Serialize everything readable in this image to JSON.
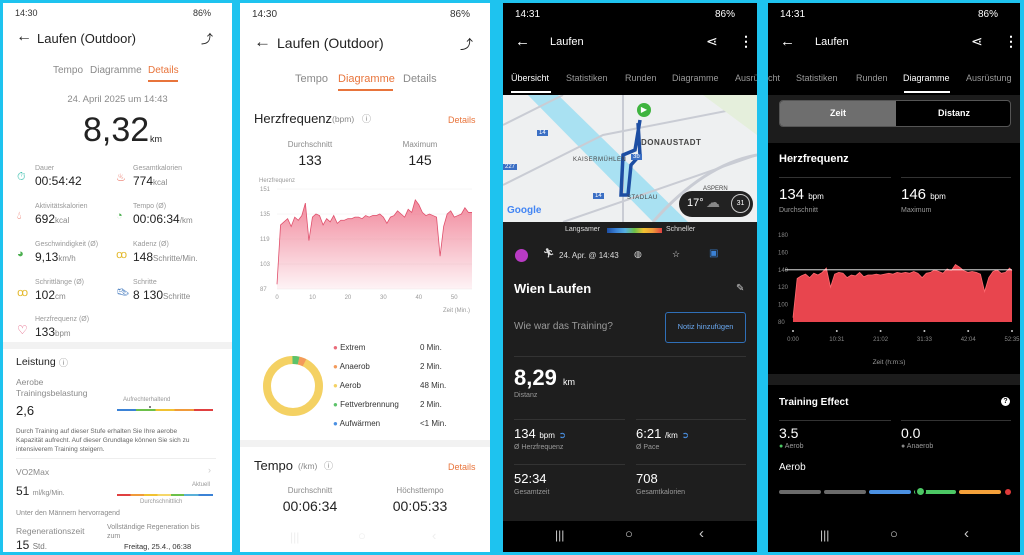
{
  "huawei_details": {
    "status": {
      "time": "14:30",
      "battery": "86%"
    },
    "title": "Laufen (Outdoor)",
    "tabs": [
      "Tempo",
      "Diagramme",
      "Details"
    ],
    "active_tab": "Details",
    "date": "24. April 2025 um 14:43",
    "distance": "8,32",
    "distance_unit": "km",
    "stats": [
      {
        "label": "Dauer",
        "value": "00:54:42",
        "unit": "",
        "icon": "stopwatch-icon"
      },
      {
        "label": "Gesamtkalorien",
        "value": "774",
        "unit": "kcal",
        "icon": "flame-icon"
      },
      {
        "label": "Aktivitätskalorien",
        "value": "692",
        "unit": "kcal",
        "icon": "drop-icon"
      },
      {
        "label": "Tempo (Ø)",
        "value": "00:06:34",
        "unit": "/km",
        "icon": "gauge-icon"
      },
      {
        "label": "Geschwindigkeit (Ø)",
        "value": "9,13",
        "unit": "km/h",
        "icon": "speedometer-icon"
      },
      {
        "label": "Kadenz (Ø)",
        "value": "148",
        "unit": "Schritte/Min.",
        "icon": "footprints-icon"
      },
      {
        "label": "Schrittlänge (Ø)",
        "value": "102",
        "unit": "cm",
        "icon": "footprints-icon"
      },
      {
        "label": "Schritte",
        "value": "8 130",
        "unit": "Schritte",
        "icon": "shoe-icon"
      },
      {
        "label": "Herzfrequenz (Ø)",
        "value": "133",
        "unit": "bpm",
        "icon": "heart-icon"
      }
    ],
    "leistung": {
      "title": "Leistung",
      "aerobe_label_1": "Aerobe",
      "aerobe_label_2": "Trainingsbelastung",
      "aerobe_value": "2,6",
      "aerobe_level": "Aufrechterhaltend",
      "description_1": "Durch Training auf dieser Stufe erhalten Sie Ihre aerobe",
      "description_2": "Kapazität aufrecht. Auf dieser Grundlage können Sie sich zu",
      "description_3": "intensiverem Training steigern.",
      "vo2_label": "VO2Max",
      "vo2_value": "51",
      "vo2_unit": "ml/kg/Min.",
      "vo2_current": "Aktuell",
      "vo2_average": "Durchschnittlich",
      "vo2_note": "Unter den Männern hervorragend",
      "regen_label": "Regenerationszeit",
      "regen_value": "15",
      "regen_unit": "Std.",
      "regen_full_1": "Vollständige Regeneration bis",
      "regen_full_2": "zum",
      "regen_date": "Freitag, 25.4., 06:38"
    }
  },
  "huawei_charts": {
    "status": {
      "time": "14:30",
      "battery": "86%"
    },
    "title": "Laufen (Outdoor)",
    "tabs": [
      "Tempo",
      "Diagramme",
      "Details"
    ],
    "active_tab": "Diagramme",
    "hr": {
      "title": "Herzfrequenz",
      "unit": "(bpm)",
      "details": "Details",
      "avg_label": "Durchschnitt",
      "avg": "133",
      "max_label": "Maximum",
      "max": "145"
    },
    "zones": [
      {
        "name": "Extrem",
        "value": "0 Min.",
        "color": "#e96b7a"
      },
      {
        "name": "Anaerob",
        "value": "2 Min.",
        "color": "#f39a5b"
      },
      {
        "name": "Aerob",
        "value": "48 Min.",
        "color": "#f4d163"
      },
      {
        "name": "Fettverbrennung",
        "value": "2 Min.",
        "color": "#5cc26a"
      },
      {
        "name": "Aufwärmen",
        "value": "<1 Min.",
        "color": "#4a90e2"
      }
    ],
    "tempo": {
      "title": "Tempo",
      "unit": "(/km)",
      "details": "Details",
      "avg_label": "Durchschnitt",
      "avg": "00:06:34",
      "best_label": "Höchsttempo",
      "best": "00:05:33"
    }
  },
  "garmin_overview": {
    "status": {
      "time": "14:31",
      "battery": "86%"
    },
    "title": "Laufen",
    "tabs": [
      "Übersicht",
      "Statistiken",
      "Runden",
      "Diagramme",
      "Ausrü"
    ],
    "active_tab": "Übersicht",
    "map": {
      "labels": [
        "DONAUSTADT",
        "KAISERMÜHLEN",
        "STADLAU",
        "ASPERN",
        "14",
        "14",
        "227",
        "3b"
      ],
      "logo": "Google",
      "weather_temp": "17°",
      "weather_badge": "31"
    },
    "speed_legend": {
      "slow": "Langsamer",
      "fast": "Schneller"
    },
    "activity_date": "24. Apr. @ 14:43",
    "name": "Wien Laufen",
    "prompt": "Wie war das Training?",
    "note_button": "Notiz hinzufügen",
    "distance": "8,29",
    "distance_unit": "km",
    "distance_label": "Distanz",
    "stats": [
      {
        "value": "134",
        "unit": "bpm",
        "label": "Ø Herzfrequenz"
      },
      {
        "value": "6:21",
        "unit": "/km",
        "label": "Ø Pace"
      },
      {
        "value": "52:34",
        "unit": "",
        "label": "Gesamtzeit"
      },
      {
        "value": "708",
        "unit": "",
        "label": "Gesamtkalorien"
      }
    ]
  },
  "garmin_charts": {
    "status": {
      "time": "14:31",
      "battery": "86%"
    },
    "title": "Laufen",
    "tabs": [
      "cht",
      "Statistiken",
      "Runden",
      "Diagramme",
      "Ausrüstung"
    ],
    "active_tab": "Diagramme",
    "toggle": [
      "Zeit",
      "Distanz"
    ],
    "toggle_active": "Zeit",
    "hr": {
      "title": "Herzfrequenz",
      "avg": "134",
      "avg_unit": "bpm",
      "avg_label": "Durchschnitt",
      "max": "146",
      "max_unit": "bpm",
      "max_label": "Maximum"
    },
    "training_effect": {
      "title": "Training Effect",
      "aerob": "3.5",
      "aerob_label": "Aerob",
      "anaerob": "0.0",
      "anaerob_label": "Anaerob",
      "scale_title": "Aerob",
      "aerob_value": 3.5
    }
  },
  "chart_data": [
    {
      "type": "area",
      "title": "Herzfrequenz",
      "ylabel": "Herzfrequenz",
      "xlabel": "Zeit (Min.)",
      "ylim": [
        87,
        151
      ],
      "yticks": [
        "151",
        "135",
        "119",
        "103",
        "87"
      ],
      "xlim": [
        0,
        55
      ],
      "xticks": [
        "0",
        "10",
        "20",
        "30",
        "40",
        "50"
      ],
      "x": [
        0,
        1,
        2,
        3,
        4,
        5,
        6,
        7,
        8,
        9,
        10,
        11,
        12,
        13,
        14,
        15,
        16,
        17,
        18,
        19,
        20,
        21,
        22,
        23,
        24,
        25,
        26,
        27,
        28,
        29,
        30,
        31,
        32,
        33,
        34,
        35,
        36,
        37,
        38,
        39,
        40,
        41,
        42,
        43,
        44,
        45,
        46,
        47,
        48,
        49,
        50,
        51,
        52,
        53,
        54,
        55
      ],
      "y": [
        90,
        128,
        130,
        132,
        127,
        133,
        131,
        134,
        142,
        118,
        133,
        135,
        134,
        128,
        132,
        130,
        134,
        129,
        131,
        131,
        132,
        132,
        133,
        133,
        132,
        134,
        133,
        134,
        134,
        135,
        133,
        129,
        133,
        134,
        137,
        135,
        133,
        138,
        136,
        144,
        141,
        136,
        134,
        135,
        134,
        133,
        108,
        127,
        135,
        137,
        133,
        134,
        135,
        139,
        136,
        136
      ]
    },
    {
      "type": "area",
      "title": "Herzfrequenz",
      "xlabel": "Zeit (h:m:s)",
      "ylim": [
        80,
        180
      ],
      "yticks": [
        "180",
        "160",
        "140",
        "120",
        "100",
        "80"
      ],
      "xlim": [
        0,
        52.58
      ],
      "xticks": [
        "0:00",
        "10:31",
        "21:02",
        "31:33",
        "42:04",
        "52:35"
      ],
      "x": [
        0,
        1,
        2,
        3,
        4,
        5,
        6,
        7,
        8,
        9,
        10,
        11,
        12,
        13,
        14,
        15,
        16,
        17,
        18,
        19,
        20,
        21,
        22,
        23,
        24,
        25,
        26,
        27,
        28,
        29,
        30,
        31,
        32,
        33,
        34,
        35,
        36,
        37,
        38,
        39,
        40,
        41,
        42,
        43,
        44,
        45,
        46,
        47,
        48,
        49,
        50,
        51,
        52,
        52.58
      ],
      "y": [
        85,
        130,
        133,
        135,
        131,
        136,
        134,
        137,
        142,
        120,
        135,
        137,
        136,
        131,
        134,
        133,
        137,
        132,
        134,
        134,
        135,
        134,
        135,
        136,
        135,
        137,
        136,
        137,
        136,
        138,
        136,
        131,
        136,
        137,
        140,
        138,
        136,
        141,
        139,
        146,
        143,
        139,
        137,
        138,
        137,
        135,
        115,
        131,
        138,
        140,
        136,
        137,
        142,
        139
      ]
    },
    {
      "type": "pie",
      "title": "",
      "categories": [
        "Extrem",
        "Anaerob",
        "Aerob",
        "Fettverbrennung",
        "Aufwärmen"
      ],
      "values": [
        0,
        2,
        48,
        2,
        0.5
      ]
    }
  ]
}
